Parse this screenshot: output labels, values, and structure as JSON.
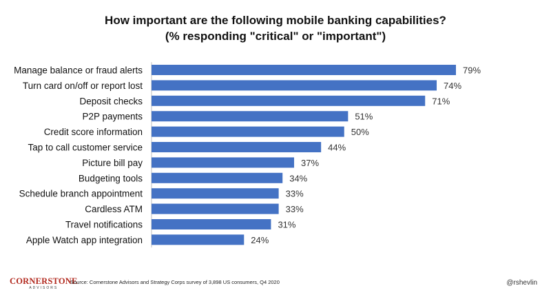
{
  "title_line1": "How important are the following mobile banking capabilities?",
  "title_line2": "(% responding \"critical\" or \"important\")",
  "chart_data": {
    "type": "bar",
    "orientation": "horizontal",
    "title": "How important are the following mobile banking capabilities? (% responding \"critical\" or \"important\")",
    "categories": [
      "Manage balance or fraud alerts",
      "Turn card on/off or report lost",
      "Deposit checks",
      "P2P payments",
      "Credit score information",
      "Tap to call customer service",
      "Picture bill pay",
      "Budgeting tools",
      "Schedule branch appointment",
      "Cardless ATM",
      "Travel notifications",
      "Apple Watch app integration"
    ],
    "values": [
      79,
      74,
      71,
      51,
      50,
      44,
      37,
      34,
      33,
      33,
      31,
      24
    ],
    "value_labels": [
      "79%",
      "74%",
      "71%",
      "51%",
      "50%",
      "44%",
      "37%",
      "34%",
      "33%",
      "33%",
      "31%",
      "24%"
    ],
    "xlim": [
      0,
      79
    ],
    "bar_color": "#4472C4",
    "grid": false,
    "legend": "none"
  },
  "footer": {
    "logo_text": "CORNERSTONE",
    "logo_sub": "ADVISORS",
    "logo_color": "#B22A1F",
    "source": "Source: Cornerstone Advisors and Strategy Corps survey of 3,898 US consumers, Q4 2020",
    "handle": "@rshevlin"
  }
}
